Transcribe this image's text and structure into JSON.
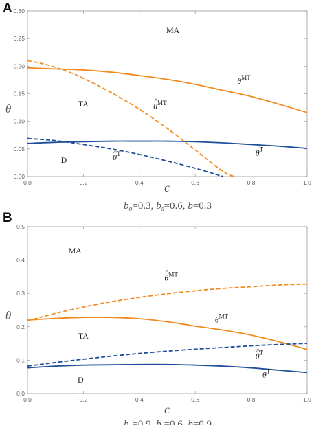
{
  "chart_data": [
    {
      "type": "line",
      "panel_label": "A",
      "xlabel": "c",
      "ylabel": "θ",
      "xlim": [
        0,
        1
      ],
      "ylim": [
        0,
        0.3
      ],
      "xticks": [
        "0.0",
        "0.2",
        "0.4",
        "0.6",
        "0.8",
        "1.0"
      ],
      "yticks": [
        "0.00",
        "0.05",
        "0.10",
        "0.15",
        "0.20",
        "0.25",
        "0.30"
      ],
      "caption": [
        "b",
        "o",
        "=0.3, ",
        "b",
        "s",
        "=0.6, ",
        "b",
        "=0.3"
      ],
      "regions": [
        {
          "text": "MA",
          "c": 0.52,
          "theta": 0.26
        },
        {
          "text": "TA",
          "c": 0.2,
          "theta": 0.127
        },
        {
          "text": "D",
          "c": 0.13,
          "theta": 0.025
        }
      ],
      "series": [
        {
          "name": "θMT",
          "label_base": "θ",
          "label_sup": "MT",
          "hat": false,
          "color": "#F28A1E",
          "dash": false,
          "x": [
            0,
            0.1,
            0.2,
            0.3,
            0.4,
            0.5,
            0.6,
            0.7,
            0.8,
            0.9,
            1.0
          ],
          "y": [
            0.197,
            0.195,
            0.193,
            0.189,
            0.183,
            0.176,
            0.167,
            0.156,
            0.145,
            0.131,
            0.116
          ],
          "label_pos": {
            "c": 0.75,
            "theta": 0.168
          }
        },
        {
          "name": "θ̂MT",
          "label_base": "θ",
          "label_sup": "MT",
          "hat": true,
          "color": "#F28A1E",
          "dash": true,
          "x": [
            0,
            0.05,
            0.1,
            0.15,
            0.2,
            0.3,
            0.4,
            0.5,
            0.6,
            0.7,
            0.74
          ],
          "y": [
            0.21,
            0.205,
            0.198,
            0.189,
            0.178,
            0.152,
            0.122,
            0.087,
            0.048,
            0.009,
            0.0
          ],
          "label_pos": {
            "c": 0.45,
            "theta": 0.122
          }
        },
        {
          "name": "θT",
          "label_base": "θ",
          "label_sup": "T",
          "hat": false,
          "color": "#1F4E99",
          "dash": false,
          "x": [
            0,
            0.1,
            0.2,
            0.3,
            0.4,
            0.5,
            0.6,
            0.7,
            0.8,
            0.9,
            1.0
          ],
          "y": [
            0.06,
            0.062,
            0.063,
            0.064,
            0.064,
            0.064,
            0.063,
            0.061,
            0.058,
            0.055,
            0.051
          ],
          "label_pos": {
            "c": 0.815,
            "theta": 0.038
          }
        },
        {
          "name": "θ̂T",
          "label_base": "θ",
          "label_sup": "T",
          "hat": true,
          "color": "#1F4E99",
          "dash": true,
          "x": [
            0,
            0.1,
            0.2,
            0.3,
            0.4,
            0.5,
            0.6,
            0.7
          ],
          "y": [
            0.069,
            0.065,
            0.058,
            0.05,
            0.04,
            0.028,
            0.015,
            0.0
          ],
          "label_pos": {
            "c": 0.305,
            "theta": 0.03
          }
        }
      ]
    },
    {
      "type": "line",
      "panel_label": "B",
      "xlabel": "c",
      "ylabel": "θ",
      "xlim": [
        0,
        1
      ],
      "ylim": [
        0,
        0.5
      ],
      "xticks": [
        "0.0",
        "0.2",
        "0.4",
        "0.6",
        "0.8",
        "1.0"
      ],
      "yticks": [
        "0.0",
        "0.1",
        "0.2",
        "0.3",
        "0.4",
        "0.5"
      ],
      "caption": [
        "b",
        "o",
        "=0.9, ",
        "b",
        "s",
        "=0.6, ",
        "b",
        "=0.9"
      ],
      "regions": [
        {
          "text": "MA",
          "c": 0.17,
          "theta": 0.42
        },
        {
          "text": "TA",
          "c": 0.2,
          "theta": 0.165
        },
        {
          "text": "D",
          "c": 0.19,
          "theta": 0.033
        }
      ],
      "series": [
        {
          "name": "θ̂MT",
          "label_base": "θ",
          "label_sup": "MT",
          "hat": true,
          "color": "#F28A1E",
          "dash": true,
          "x": [
            0,
            0.1,
            0.2,
            0.3,
            0.4,
            0.5,
            0.6,
            0.7,
            0.8,
            0.9,
            1.0
          ],
          "y": [
            0.218,
            0.24,
            0.259,
            0.275,
            0.288,
            0.299,
            0.308,
            0.315,
            0.32,
            0.325,
            0.328
          ],
          "label_pos": {
            "c": 0.49,
            "theta": 0.338
          }
        },
        {
          "name": "θMT",
          "label_base": "θ",
          "label_sup": "MT",
          "hat": false,
          "color": "#F28A1E",
          "dash": false,
          "x": [
            0,
            0.1,
            0.2,
            0.3,
            0.4,
            0.5,
            0.6,
            0.7,
            0.8,
            0.9,
            1.0
          ],
          "y": [
            0.22,
            0.225,
            0.228,
            0.228,
            0.224,
            0.215,
            0.202,
            0.19,
            0.175,
            0.155,
            0.132
          ],
          "label_pos": {
            "c": 0.67,
            "theta": 0.213
          }
        },
        {
          "name": "θ̂T",
          "label_base": "θ",
          "label_sup": "T",
          "hat": true,
          "color": "#1F4E99",
          "dash": true,
          "x": [
            0,
            0.1,
            0.2,
            0.3,
            0.4,
            0.5,
            0.6,
            0.7,
            0.8,
            0.9,
            1.0
          ],
          "y": [
            0.082,
            0.093,
            0.103,
            0.112,
            0.12,
            0.127,
            0.133,
            0.138,
            0.143,
            0.147,
            0.15
          ],
          "label_pos": {
            "c": 0.815,
            "theta": 0.104
          }
        },
        {
          "name": "θT",
          "label_base": "θ",
          "label_sup": "T",
          "hat": false,
          "color": "#1F4E99",
          "dash": false,
          "x": [
            0,
            0.1,
            0.2,
            0.3,
            0.4,
            0.5,
            0.6,
            0.7,
            0.8,
            0.9,
            1.0
          ],
          "y": [
            0.077,
            0.082,
            0.085,
            0.086,
            0.087,
            0.087,
            0.085,
            0.082,
            0.077,
            0.07,
            0.063
          ],
          "label_pos": {
            "c": 0.84,
            "theta": 0.048
          }
        }
      ]
    }
  ]
}
